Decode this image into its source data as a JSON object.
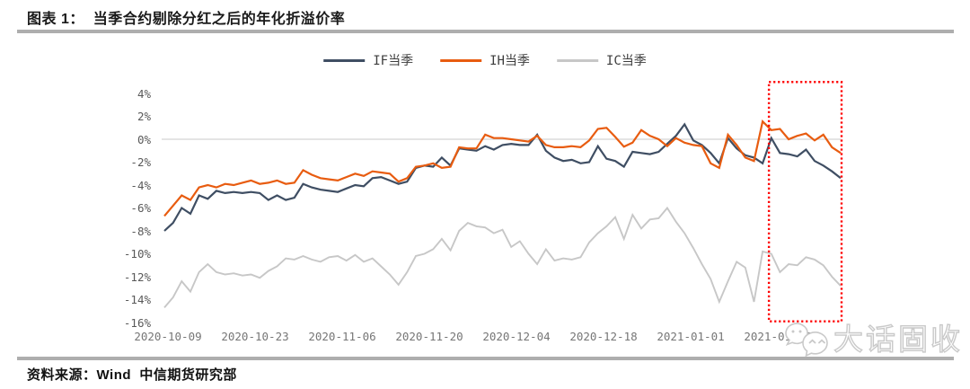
{
  "header": {
    "title": "图表 1：  当季合约剔除分红之后的年化折溢价率"
  },
  "footer": {
    "source": "资料来源：Wind  中信期货研究部"
  },
  "watermark": {
    "text": "大话固收",
    "icon": "wechat-chat-bubbles"
  },
  "colors": {
    "rule_gray": "#aeaeae",
    "grid_gray": "#dcdcdc",
    "highlight_red": "#ff0000"
  },
  "chart_data": {
    "type": "line",
    "title": "当季合约剔除分红之后的年化折溢价率",
    "xlabel": "",
    "ylabel": "",
    "ylim": [
      -16,
      4
    ],
    "grid": "horizontal line at 0% only",
    "legend_position": "top-center",
    "y_tick_values": [
      4,
      2,
      0,
      -2,
      -4,
      -6,
      -8,
      -10,
      -12,
      -14,
      -16
    ],
    "y_tick_labels": [
      "4%",
      "2%",
      "0%",
      "-2%",
      "-4%",
      "-6%",
      "-8%",
      "-10%",
      "-12%",
      "-14%",
      "-16%"
    ],
    "x_tick_labels": [
      "2020-10-09",
      "2020-10-23",
      "2020-11-06",
      "2020-11-20",
      "2020-12-04",
      "2020-12-18",
      "2021-01-01",
      "2021-01-15"
    ],
    "x_dates": [
      "2020-10-09",
      "2020-10-12",
      "2020-10-13",
      "2020-10-14",
      "2020-10-15",
      "2020-10-16",
      "2020-10-19",
      "2020-10-20",
      "2020-10-21",
      "2020-10-22",
      "2020-10-23",
      "2020-10-26",
      "2020-10-27",
      "2020-10-28",
      "2020-10-29",
      "2020-10-30",
      "2020-11-02",
      "2020-11-03",
      "2020-11-04",
      "2020-11-05",
      "2020-11-06",
      "2020-11-09",
      "2020-11-10",
      "2020-11-11",
      "2020-11-12",
      "2020-11-13",
      "2020-11-16",
      "2020-11-17",
      "2020-11-18",
      "2020-11-19",
      "2020-11-20",
      "2020-11-23",
      "2020-11-24",
      "2020-11-25",
      "2020-11-26",
      "2020-11-27",
      "2020-11-30",
      "2020-12-01",
      "2020-12-02",
      "2020-12-03",
      "2020-12-04",
      "2020-12-07",
      "2020-12-08",
      "2020-12-09",
      "2020-12-10",
      "2020-12-11",
      "2020-12-14",
      "2020-12-15",
      "2020-12-16",
      "2020-12-17",
      "2020-12-18",
      "2020-12-21",
      "2020-12-22",
      "2020-12-23",
      "2020-12-24",
      "2020-12-25",
      "2020-12-28",
      "2020-12-29",
      "2020-12-30",
      "2020-12-31",
      "2021-01-04",
      "2021-01-05",
      "2021-01-06",
      "2021-01-07",
      "2021-01-08",
      "2021-01-11",
      "2021-01-12",
      "2021-01-13",
      "2021-01-14",
      "2021-01-15",
      "2021-01-18",
      "2021-01-19",
      "2021-01-20",
      "2021-01-21",
      "2021-01-22",
      "2021-01-25",
      "2021-01-26",
      "2021-01-27",
      "2021-01-28"
    ],
    "unit": "percent (annualized premium/discount)",
    "series": [
      {
        "name": "IF当季",
        "color": "#3f4e63",
        "values": [
          -8.0,
          -7.3,
          -6.0,
          -6.5,
          -4.9,
          -5.2,
          -4.5,
          -4.7,
          -4.6,
          -4.7,
          -4.6,
          -4.7,
          -5.3,
          -4.9,
          -5.3,
          -5.1,
          -3.9,
          -4.2,
          -4.4,
          -4.5,
          -4.6,
          -4.3,
          -4.0,
          -4.1,
          -3.4,
          -3.3,
          -3.6,
          -3.9,
          -3.7,
          -2.5,
          -2.3,
          -2.4,
          -1.6,
          -2.3,
          -0.8,
          -0.9,
          -1.0,
          -0.6,
          -0.9,
          -0.5,
          -0.4,
          -0.5,
          -0.5,
          0.4,
          -1.0,
          -1.6,
          -1.9,
          -1.8,
          -2.1,
          -2.0,
          -0.6,
          -1.7,
          -1.9,
          -2.4,
          -1.1,
          -1.2,
          -1.3,
          -1.1,
          -0.4,
          0.3,
          1.3,
          -0.1,
          -0.5,
          -1.2,
          -2.1,
          0.1,
          -0.8,
          -1.4,
          -1.6,
          -2.1,
          0.1,
          -1.2,
          -1.3,
          -1.5,
          -0.9,
          -1.9,
          -2.3,
          -2.8,
          -3.4
        ]
      },
      {
        "name": "IH当季",
        "color": "#e85c10",
        "values": [
          -6.7,
          -5.8,
          -4.9,
          -5.3,
          -4.2,
          -4.0,
          -4.2,
          -3.9,
          -4.0,
          -3.8,
          -3.6,
          -3.9,
          -3.8,
          -3.6,
          -3.9,
          -3.8,
          -2.7,
          -3.1,
          -3.4,
          -3.5,
          -3.6,
          -3.3,
          -3.0,
          -3.2,
          -2.8,
          -2.9,
          -3.0,
          -3.7,
          -3.4,
          -2.4,
          -2.3,
          -2.1,
          -2.5,
          -2.4,
          -0.7,
          -0.8,
          -0.8,
          0.4,
          0.1,
          0.1,
          0.0,
          -0.1,
          -0.2,
          0.3,
          -0.5,
          -0.7,
          -0.7,
          -0.6,
          -0.7,
          -0.1,
          0.9,
          1.0,
          0.2,
          -0.65,
          -0.3,
          0.8,
          0.3,
          0.0,
          -0.6,
          0.1,
          -0.3,
          -0.5,
          -0.6,
          -2.1,
          -2.5,
          0.4,
          -0.5,
          -1.6,
          -1.9,
          1.55,
          0.8,
          0.9,
          0.0,
          0.3,
          0.5,
          -0.1,
          0.4,
          -0.7,
          -1.2
        ]
      },
      {
        "name": "IC当季",
        "color": "#c7c7c7",
        "values": [
          -14.7,
          -13.8,
          -12.4,
          -13.3,
          -11.6,
          -10.9,
          -11.6,
          -11.8,
          -11.7,
          -11.9,
          -11.8,
          -12.1,
          -11.5,
          -11.1,
          -10.4,
          -10.5,
          -10.2,
          -10.5,
          -10.7,
          -10.3,
          -10.2,
          -10.6,
          -10.1,
          -10.7,
          -10.4,
          -11.1,
          -11.8,
          -12.7,
          -11.6,
          -10.2,
          -10.0,
          -9.6,
          -8.7,
          -9.7,
          -8.0,
          -7.3,
          -7.6,
          -7.7,
          -8.2,
          -7.9,
          -9.4,
          -8.9,
          -10.0,
          -10.9,
          -9.6,
          -10.6,
          -10.4,
          -10.5,
          -10.3,
          -9.0,
          -8.2,
          -7.6,
          -6.8,
          -8.7,
          -6.6,
          -7.8,
          -7.0,
          -6.9,
          -6.0,
          -7.2,
          -8.2,
          -9.5,
          -10.9,
          -12.2,
          -14.2,
          -12.4,
          -10.7,
          -11.2,
          -14.2,
          -9.8,
          -10.0,
          -11.6,
          -10.9,
          -11.0,
          -10.3,
          -10.5,
          -11.0,
          -12.0,
          -12.8
        ]
      }
    ],
    "highlight_box": {
      "style": "dotted",
      "color": "#ff0000",
      "start_date": "2021-01-15",
      "end_date": "2021-01-28",
      "y_top_pct": 5.0,
      "y_bottom_pct": -15.9
    }
  }
}
